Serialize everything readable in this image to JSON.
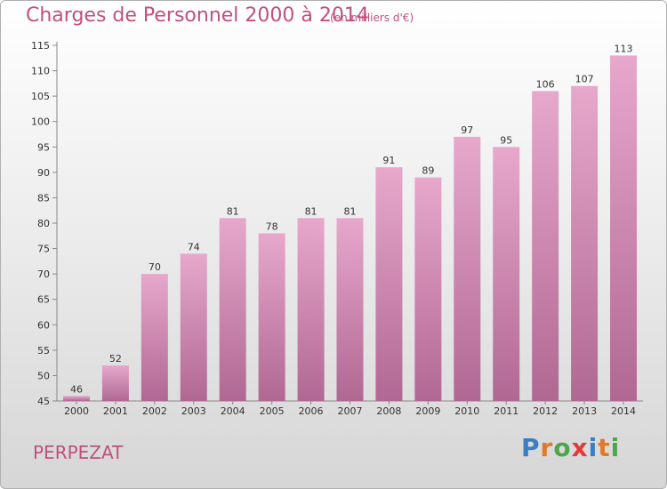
{
  "header": {
    "title": "Charges de Personnel 2000 à 2014",
    "subtitle": "(en milliers d'€)"
  },
  "footer": {
    "town": "PERPEZAT",
    "logo_text": "Proxiti"
  },
  "colors": {
    "title": "#c0507e",
    "bar_top": "#e7a8cc",
    "bar_bottom": "#b06893",
    "logo_letters": [
      "#3a7fc4",
      "#e07a2a",
      "#4aa84a",
      "#e23a3a",
      "#3a7fc4",
      "#e07a2a",
      "#4aa84a"
    ]
  },
  "chart_data": {
    "type": "bar",
    "categories": [
      "2000",
      "2001",
      "2002",
      "2003",
      "2004",
      "2005",
      "2006",
      "2007",
      "2008",
      "2009",
      "2010",
      "2011",
      "2012",
      "2013",
      "2014"
    ],
    "values": [
      46,
      52,
      70,
      74,
      81,
      78,
      81,
      81,
      91,
      89,
      97,
      95,
      106,
      107,
      113
    ],
    "ylim": [
      45,
      115
    ],
    "yticks": [
      45,
      50,
      55,
      60,
      65,
      70,
      75,
      80,
      85,
      90,
      95,
      100,
      105,
      110,
      115
    ],
    "title": "Charges de Personnel 2000 à 2014",
    "xlabel": "",
    "ylabel": "",
    "grid": false
  }
}
